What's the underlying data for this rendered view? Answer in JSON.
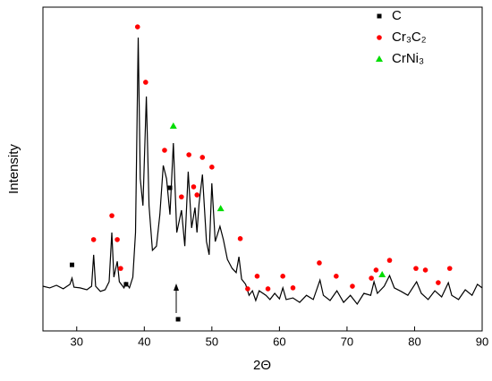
{
  "chart_data": {
    "type": "line",
    "x_label": "2Θ",
    "y_label": "Intensity",
    "xlim": [
      25,
      90
    ],
    "xticks": [
      30,
      40,
      50,
      60,
      70,
      80,
      90
    ],
    "ylim": [
      0,
      100
    ],
    "color": "#000000",
    "x": [
      25,
      26,
      27,
      28,
      29,
      29.3,
      29.6,
      30.5,
      31.5,
      32.2,
      32.5,
      32.8,
      33.5,
      34.2,
      34.8,
      35.2,
      35.5,
      36,
      36.3,
      37,
      37.3,
      37.8,
      38.3,
      38.7,
      39.1,
      39.4,
      39.8,
      40.3,
      40.7,
      41.2,
      41.8,
      42.3,
      42.8,
      43.3,
      43.8,
      44.3,
      44.8,
      45.5,
      46,
      46.5,
      47,
      47.5,
      47.8,
      48.1,
      48.6,
      49.2,
      49.6,
      50,
      50.5,
      51.2,
      51.7,
      52.3,
      53,
      53.6,
      54,
      54.4,
      55,
      55.5,
      56,
      56.5,
      57,
      58,
      58.6,
      59.3,
      60,
      60.5,
      61,
      62,
      63,
      64,
      65,
      66,
      66.5,
      67.5,
      68.5,
      69.5,
      70.5,
      71.5,
      72.5,
      73.5,
      74,
      74.5,
      75.5,
      76.3,
      77,
      78,
      79,
      80.3,
      81,
      82,
      83,
      84,
      85,
      85.5,
      86.5,
      87.5,
      88.5,
      89.3,
      90
    ],
    "values": [
      13.8,
      13.3,
      14.1,
      13.0,
      14.4,
      16.3,
      13.5,
      13.3,
      12.7,
      13.8,
      23.5,
      13.8,
      12.2,
      12.7,
      15.2,
      30.4,
      16.6,
      21.5,
      15.2,
      13.3,
      14.9,
      13.3,
      16.6,
      30.4,
      90.6,
      47.0,
      38.7,
      72.4,
      38.7,
      24.9,
      26.2,
      35.9,
      51.1,
      47.0,
      35.9,
      58.0,
      30.4,
      37.3,
      26.2,
      49.2,
      31.8,
      38.1,
      30.4,
      39.2,
      48.3,
      27.6,
      23.5,
      45.6,
      27.6,
      32.3,
      28.2,
      22.1,
      19.3,
      18.0,
      22.9,
      16.0,
      14.4,
      11.0,
      12.4,
      9.4,
      12.4,
      11.0,
      9.7,
      11.6,
      9.9,
      13.3,
      9.7,
      10.2,
      8.8,
      11.0,
      9.7,
      15.7,
      11.0,
      9.4,
      12.4,
      8.8,
      11.0,
      8.3,
      11.6,
      11.0,
      15.2,
      11.6,
      13.8,
      17.1,
      13.3,
      12.2,
      11.0,
      15.2,
      11.6,
      9.7,
      12.4,
      10.5,
      14.9,
      11.0,
      9.7,
      12.7,
      11.0,
      14.4,
      13.3
    ],
    "markers": [
      {
        "name": "C",
        "color": "#000000",
        "shape": "square",
        "x": [
          29.3,
          37.3,
          43.8,
          45
        ],
        "values": [
          20.4,
          14.4,
          44.2,
          3.6
        ]
      },
      {
        "name": "Cr₃C₂",
        "color": "#ff0000",
        "shape": "circle",
        "x": [
          32.5,
          35.2,
          36,
          36.5,
          39,
          40.2,
          43,
          45.5,
          46.6,
          47.3,
          47.8,
          48.6,
          50,
          54.2,
          55.3,
          56.7,
          58.3,
          60.5,
          62,
          65.9,
          68.4,
          70.8,
          73.6,
          74.3,
          76.3,
          80.2,
          81.6,
          83.5,
          85.2
        ],
        "values": [
          28.2,
          35.6,
          28.2,
          19.3,
          93.9,
          76.8,
          55.8,
          41.4,
          54.4,
          44.5,
          42.0,
          53.6,
          50.6,
          28.5,
          13.0,
          16.9,
          13.0,
          16.9,
          13.3,
          21.0,
          16.9,
          13.8,
          16.3,
          18.8,
          21.8,
          19.3,
          18.8,
          14.9,
          19.3
        ]
      },
      {
        "name": "CrNi₃",
        "color": "#00dd00",
        "shape": "triangle",
        "x": [
          44.3,
          51.3,
          75.2
        ],
        "values": [
          63.3,
          37.8,
          17.4
        ]
      }
    ]
  }
}
